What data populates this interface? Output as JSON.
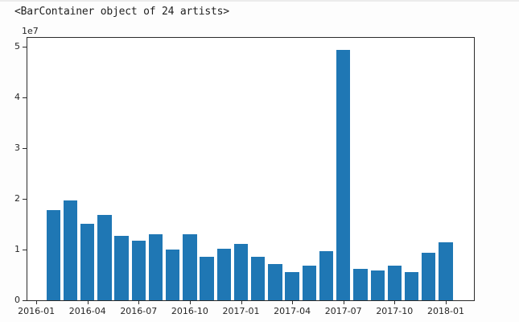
{
  "output_text": "<BarContainer object of 24 artists>",
  "chart_data": {
    "type": "bar",
    "title": "",
    "xlabel": "",
    "ylabel": "",
    "legend": null,
    "grid": false,
    "bar_color": "#1f77b4",
    "y_offset_text": "1e7",
    "categories": [
      "2016-02",
      "2016-03",
      "2016-04",
      "2016-05",
      "2016-06",
      "2016-07",
      "2016-08",
      "2016-09",
      "2016-10",
      "2016-11",
      "2016-12",
      "2017-01",
      "2017-02",
      "2017-03",
      "2017-04",
      "2017-05",
      "2017-06",
      "2017-07",
      "2017-08",
      "2017-09",
      "2017-10",
      "2017-11",
      "2017-12",
      "2018-01"
    ],
    "values": [
      17800000,
      19700000,
      15100000,
      16900000,
      12700000,
      11700000,
      13000000,
      10000000,
      13100000,
      8600000,
      10200000,
      11100000,
      8600000,
      7100000,
      5600000,
      6900000,
      9700000,
      49400000,
      6200000,
      5900000,
      6900000,
      5600000,
      9300000,
      11500000
    ],
    "ylim": [
      0,
      51900000
    ],
    "y_ticks": {
      "values": [
        0,
        10000000,
        20000000,
        30000000,
        40000000,
        50000000
      ],
      "labels": [
        "0",
        "1",
        "2",
        "3",
        "4",
        "5"
      ]
    },
    "x_ticks": {
      "labels": [
        "2016-01",
        "2016-04",
        "2016-07",
        "2016-10",
        "2017-01",
        "2017-04",
        "2017-07",
        "2017-10",
        "2018-01"
      ]
    }
  }
}
